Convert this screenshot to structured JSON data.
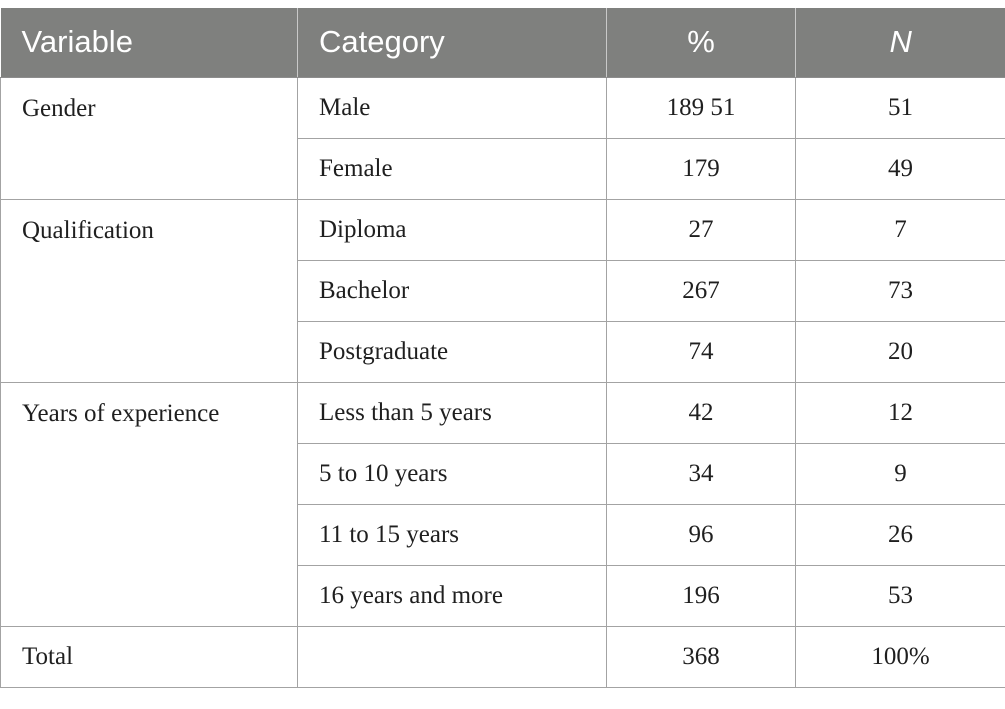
{
  "table": {
    "headers": [
      "Variable",
      "Category",
      "%",
      "N"
    ],
    "groups": [
      {
        "variable": "Gender",
        "rows": [
          {
            "category": "Male",
            "percent": "189 51",
            "n": "51"
          },
          {
            "category": "Female",
            "percent": "179",
            "n": "49"
          }
        ]
      },
      {
        "variable": "Qualification",
        "rows": [
          {
            "category": "Diploma",
            "percent": "27",
            "n": "7"
          },
          {
            "category": "Bachelor",
            "percent": "267",
            "n": "73"
          },
          {
            "category": "Postgraduate",
            "percent": "74",
            "n": "20"
          }
        ]
      },
      {
        "variable": "Years of experience",
        "rows": [
          {
            "category": "Less than 5 years",
            "percent": "42",
            "n": "12"
          },
          {
            "category": "5 to 10 years",
            "percent": "34",
            "n": "9"
          },
          {
            "category": "11 to 15 years",
            "percent": "96",
            "n": "26"
          },
          {
            "category": "16 years and more",
            "percent": "196",
            "n": "53"
          }
        ]
      }
    ],
    "total": {
      "variable": "Total",
      "category": "",
      "percent": "368",
      "n": "100%"
    }
  }
}
